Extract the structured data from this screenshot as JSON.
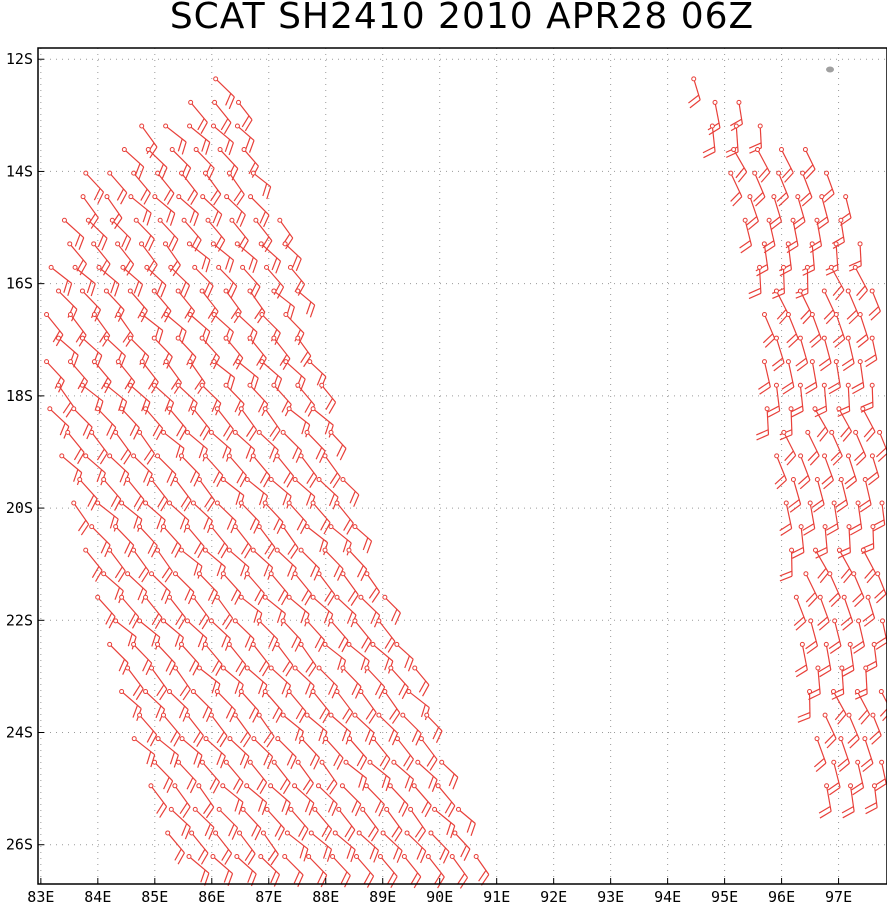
{
  "title": "SCAT SH2410 2010 APR28 06Z",
  "colors": {
    "barb": "#e8403a",
    "grid": "#9a9a9a",
    "land": "#a0a0a0"
  },
  "axes": {
    "lon_ticks": [
      "83E",
      "84E",
      "85E",
      "86E",
      "87E",
      "88E",
      "89E",
      "90E",
      "91E",
      "92E",
      "93E",
      "94E",
      "95E",
      "96E",
      "97E"
    ],
    "lat_ticks": [
      "12S",
      "14S",
      "16S",
      "18S",
      "20S",
      "22S",
      "24S",
      "26S"
    ]
  },
  "map": {
    "lon_range": [
      82.95,
      97.85
    ],
    "lat_range": [
      -11.8,
      -26.7
    ],
    "swaths": [
      {
        "name": "west",
        "left_edge": [
          [
            -12.2,
            86.2
          ],
          [
            -13.3,
            84.5
          ],
          [
            -14.2,
            83.5
          ],
          [
            -16.0,
            83.0
          ],
          [
            -18.0,
            83.0
          ],
          [
            -20.0,
            83.5
          ],
          [
            -22.0,
            84.0
          ],
          [
            -24.0,
            84.5
          ],
          [
            -26.0,
            85.2
          ],
          [
            -26.7,
            85.5
          ]
        ],
        "right_edge": [
          [
            -12.2,
            86.4
          ],
          [
            -13.5,
            86.8
          ],
          [
            -15.0,
            87.3
          ],
          [
            -16.5,
            87.7
          ],
          [
            -18.0,
            88.1
          ],
          [
            -20.0,
            88.6
          ],
          [
            -22.0,
            89.3
          ],
          [
            -24.0,
            90.1
          ],
          [
            -25.5,
            90.5
          ],
          [
            -26.7,
            90.9
          ]
        ]
      },
      {
        "name": "east",
        "left_edge": [
          [
            -12.2,
            94.3
          ],
          [
            -14.0,
            95.0
          ],
          [
            -16.0,
            95.6
          ],
          [
            -18.0,
            95.6
          ],
          [
            -20.0,
            96.0
          ],
          [
            -22.0,
            96.2
          ],
          [
            -24.0,
            96.5
          ],
          [
            -25.0,
            96.7
          ]
        ],
        "right_edge": [
          [
            -12.2,
            94.6
          ],
          [
            -14.0,
            97.0
          ],
          [
            -16.0,
            97.8
          ],
          [
            -18.0,
            97.85
          ],
          [
            -20.0,
            97.85
          ],
          [
            -22.0,
            97.85
          ],
          [
            -24.0,
            97.85
          ],
          [
            -25.0,
            97.85
          ]
        ]
      }
    ],
    "island": {
      "lat": -12.2,
      "lon": 96.85
    }
  }
}
